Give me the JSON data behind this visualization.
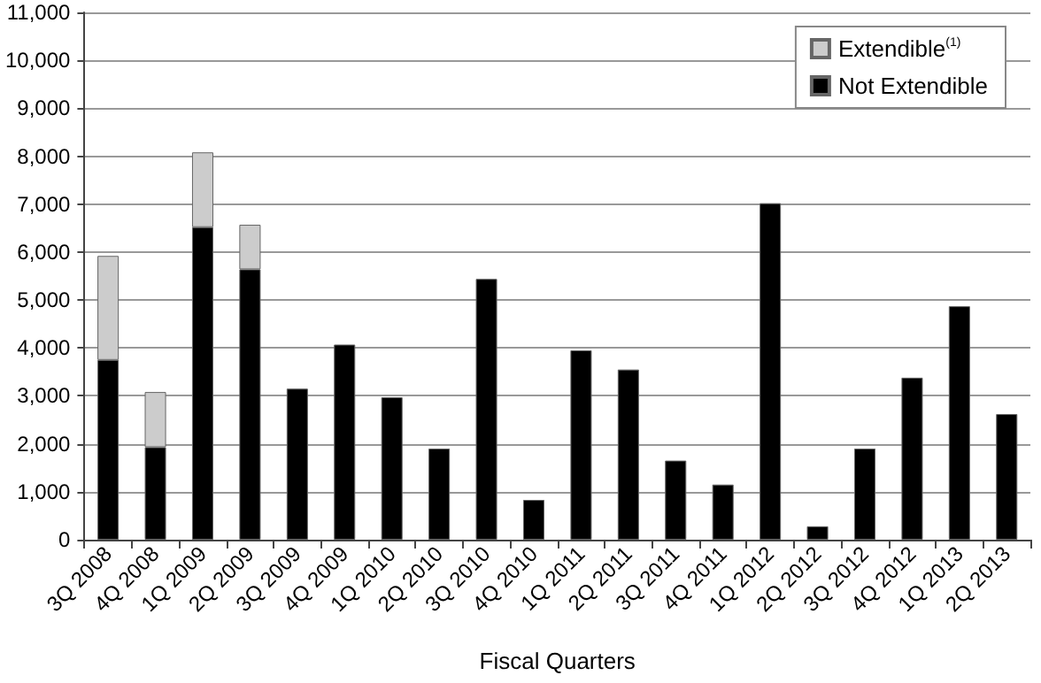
{
  "chart_data": {
    "type": "bar",
    "xlabel": "Fiscal Quarters",
    "stacked": true,
    "categories": [
      "3Q 2008",
      "4Q 2008",
      "1Q 2009",
      "2Q 2009",
      "3Q 2009",
      "4Q 2009",
      "1Q 2010",
      "2Q 2010",
      "3Q 2010",
      "4Q 2010",
      "1Q 2011",
      "2Q 2011",
      "3Q 2011",
      "4Q 2011",
      "1Q 2012",
      "2Q 2012",
      "3Q 2012",
      "4Q 2012",
      "1Q 2013",
      "2Q 2013"
    ],
    "series": [
      {
        "name": "Not Extendible",
        "color": "#000000",
        "values": [
          3750,
          1930,
          6520,
          5640,
          3150,
          4070,
          2970,
          1900,
          5440,
          830,
          3950,
          3550,
          1650,
          1150,
          7020,
          280,
          1900,
          3380,
          4870,
          2620
        ]
      },
      {
        "name": "Extendible$^{(1)}$",
        "color": "#cccccc",
        "values": [
          2170,
          1150,
          1560,
          930,
          null,
          null,
          null,
          null,
          null,
          null,
          null,
          null,
          null,
          null,
          null,
          null,
          null,
          null,
          null,
          null
        ]
      }
    ],
    "ylim": [
      0,
      11000
    ],
    "yticks": [
      0,
      {
        "value": 1000,
        "label": "1,000"
      },
      {
        "value": 2000,
        "label": "2,000"
      },
      {
        "value": 3000,
        "label": "3,000"
      },
      {
        "value": 4000,
        "label": "4,000"
      },
      {
        "value": 5000,
        "label": "5,000"
      },
      {
        "value": 6000,
        "label": "6,000"
      },
      {
        "value": 7000,
        "label": "7,000"
      },
      {
        "value": 8000,
        "label": "8,000"
      },
      {
        "value": 9000,
        "label": "9,000"
      },
      {
        "value": 10000,
        "label": "10,000"
      },
      {
        "value": 11000,
        "label": "11,000"
      }
    ],
    "grid": "y",
    "legend": "top right"
  }
}
